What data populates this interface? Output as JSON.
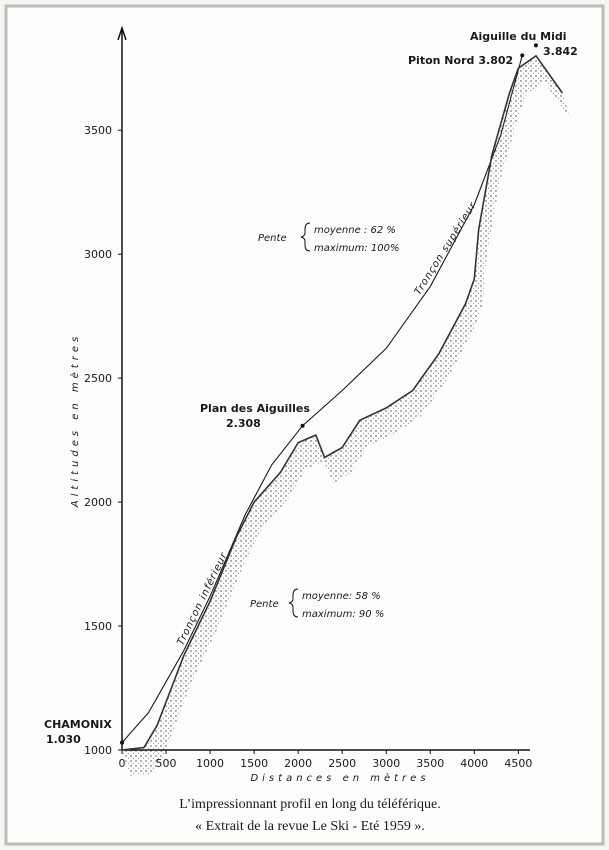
{
  "chart_data": {
    "type": "line",
    "ylabel": "Altitudes en mètres",
    "xlabel": "Distances en mètres",
    "xlim": [
      0,
      5200
    ],
    "ylim": [
      1000,
      3880
    ],
    "xticks": [
      0,
      500,
      1000,
      1500,
      2000,
      2500,
      3000,
      3500,
      4000,
      4500
    ],
    "yticks": [
      1000,
      1500,
      2000,
      2500,
      3000,
      3500
    ],
    "series": [
      {
        "color": "#1a1a1a",
        "x": [
          0,
          300,
          700,
          1000,
          1400,
          1700,
          2050,
          2500,
          3000,
          3500,
          4000,
          4300,
          4545
        ],
        "values": [
          1030,
          1150,
          1400,
          1620,
          1950,
          2150,
          2308,
          2450,
          2620,
          2870,
          3200,
          3480,
          3802
        ]
      },
      {
        "color": "#333333",
        "x": [
          0,
          250,
          400,
          700,
          1000,
          1300,
          1500,
          1800,
          2000,
          2200,
          2300,
          2500,
          2700,
          3000,
          3300,
          3600,
          3900,
          4000,
          4050,
          4200,
          4400,
          4500,
          4700,
          5000
        ],
        "values": [
          1000,
          1010,
          1100,
          1380,
          1600,
          1860,
          2000,
          2120,
          2240,
          2270,
          2180,
          2220,
          2330,
          2380,
          2450,
          2600,
          2800,
          2900,
          3100,
          3400,
          3650,
          3750,
          3800,
          3650
        ]
      }
    ],
    "stations": [
      {
        "name": "CHAMONIX",
        "x": 0,
        "value": 1030,
        "label": "1.030"
      },
      {
        "name": "Plan des Aiguilles",
        "x": 2050,
        "value": 2308,
        "label": "2.308"
      },
      {
        "name": "Piton Nord",
        "x": 4545,
        "value": 3802,
        "label": "3.802"
      },
      {
        "name": "Aiguille du Midi",
        "x": 4700,
        "value": 3842,
        "label": "3.842"
      }
    ],
    "sections": [
      "Tronçon inférieur",
      "Tronçon supérieur"
    ],
    "slopes": [
      {
        "title": "Pente",
        "average": "moyenne :  62 %",
        "maximum": "maximum: 100%"
      },
      {
        "title": "Pente",
        "average": "moyenne: 58 %",
        "maximum": "maximum: 90 %"
      }
    ]
  },
  "caption": [
    "L’impressionnant profil en long du téléférique.",
    "« Extrait de la revue Le Ski - Eté 1959 »."
  ]
}
